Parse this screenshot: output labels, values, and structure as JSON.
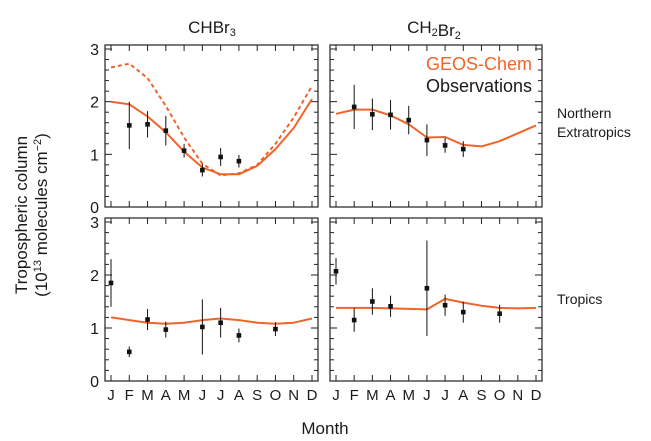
{
  "figure": {
    "ylabel": "Tropospheric column",
    "ylabel_unit": "(10^13 molecules cm^-2)",
    "xlabel": "Month",
    "month_ticks": [
      "J",
      "F",
      "M",
      "A",
      "M",
      "J",
      "J",
      "A",
      "S",
      "O",
      "N",
      "D"
    ]
  },
  "legend": {
    "entries": [
      {
        "label": "GEOS-Chem",
        "color": "#f0642a"
      },
      {
        "label": "Observations",
        "color": "#111111"
      }
    ]
  },
  "colors": {
    "model": "#f0642a",
    "observations": "#111111",
    "axis": "#222222"
  },
  "chart_data": [
    {
      "type": "line",
      "panel": "top-left",
      "species": "CHBr3",
      "region": "Northern Extratropics",
      "x": [
        1,
        2,
        3,
        4,
        5,
        6,
        7,
        8,
        9,
        10,
        11,
        12
      ],
      "ylim": [
        0,
        3
      ],
      "yticks": [
        0,
        1,
        2,
        3
      ],
      "series": [
        {
          "role": "model",
          "style": "solid",
          "values": [
            2.0,
            1.95,
            1.72,
            1.42,
            1.05,
            0.75,
            0.62,
            0.62,
            0.78,
            1.1,
            1.5,
            2.05
          ]
        },
        {
          "role": "model",
          "style": "dashed",
          "values": [
            2.65,
            2.72,
            2.45,
            1.92,
            1.32,
            0.82,
            0.6,
            0.64,
            0.8,
            1.2,
            1.7,
            2.3
          ]
        },
        {
          "role": "observations",
          "style": "points",
          "points": [
            {
              "x": 2,
              "y": 1.55,
              "err": 0.45
            },
            {
              "x": 3,
              "y": 1.57,
              "err": 0.25
            },
            {
              "x": 4,
              "y": 1.45,
              "err": 0.28
            },
            {
              "x": 5,
              "y": 1.07,
              "err": 0.13
            },
            {
              "x": 6,
              "y": 0.7,
              "err": 0.12
            },
            {
              "x": 7,
              "y": 0.95,
              "err": 0.17
            },
            {
              "x": 8,
              "y": 0.87,
              "err": 0.12
            }
          ]
        }
      ]
    },
    {
      "type": "line",
      "panel": "top-right",
      "species": "CH2Br2",
      "region": "Northern Extratropics",
      "x": [
        1,
        2,
        3,
        4,
        5,
        6,
        7,
        8,
        9,
        10,
        11,
        12
      ],
      "ylim": [
        0,
        3
      ],
      "yticks": [
        0,
        1,
        2,
        3
      ],
      "series": [
        {
          "role": "model",
          "style": "solid",
          "values": [
            1.77,
            1.85,
            1.85,
            1.74,
            1.57,
            1.32,
            1.33,
            1.18,
            1.15,
            1.25,
            1.4,
            1.55
          ]
        },
        {
          "role": "observations",
          "style": "points",
          "points": [
            {
              "x": 2,
              "y": 1.9,
              "err": 0.42
            },
            {
              "x": 3,
              "y": 1.76,
              "err": 0.3
            },
            {
              "x": 4,
              "y": 1.75,
              "err": 0.28
            },
            {
              "x": 5,
              "y": 1.65,
              "err": 0.27
            },
            {
              "x": 6,
              "y": 1.27,
              "err": 0.3
            },
            {
              "x": 7,
              "y": 1.17,
              "err": 0.14
            },
            {
              "x": 8,
              "y": 1.1,
              "err": 0.15
            }
          ]
        }
      ]
    },
    {
      "type": "line",
      "panel": "bottom-left",
      "species": "CHBr3",
      "region": "Tropics",
      "x": [
        1,
        2,
        3,
        4,
        5,
        6,
        7,
        8,
        9,
        10,
        11,
        12
      ],
      "ylim": [
        0,
        3
      ],
      "yticks": [
        0,
        1,
        2,
        3
      ],
      "series": [
        {
          "role": "model",
          "style": "solid",
          "values": [
            1.2,
            1.15,
            1.1,
            1.08,
            1.1,
            1.15,
            1.18,
            1.15,
            1.1,
            1.08,
            1.1,
            1.18
          ]
        },
        {
          "role": "observations",
          "style": "points",
          "points": [
            {
              "x": 1,
              "y": 1.85,
              "err": 0.45
            },
            {
              "x": 2,
              "y": 0.55,
              "err": 0.1
            },
            {
              "x": 3,
              "y": 1.16,
              "err": 0.2
            },
            {
              "x": 4,
              "y": 0.97,
              "err": 0.15
            },
            {
              "x": 6,
              "y": 1.02,
              "err": 0.52
            },
            {
              "x": 7,
              "y": 1.1,
              "err": 0.28
            },
            {
              "x": 8,
              "y": 0.86,
              "err": 0.13
            },
            {
              "x": 10,
              "y": 0.98,
              "err": 0.13
            }
          ]
        }
      ]
    },
    {
      "type": "line",
      "panel": "bottom-right",
      "species": "CH2Br2",
      "region": "Tropics",
      "x": [
        1,
        2,
        3,
        4,
        5,
        6,
        7,
        8,
        9,
        10,
        11,
        12
      ],
      "ylim": [
        0,
        3
      ],
      "yticks": [
        0,
        1,
        2,
        3
      ],
      "series": [
        {
          "role": "model",
          "style": "solid",
          "values": [
            1.38,
            1.38,
            1.38,
            1.37,
            1.36,
            1.35,
            1.55,
            1.48,
            1.42,
            1.38,
            1.37,
            1.38
          ]
        },
        {
          "role": "observations",
          "style": "points",
          "points": [
            {
              "x": 1,
              "y": 2.07,
              "err": 0.25
            },
            {
              "x": 2,
              "y": 1.15,
              "err": 0.22
            },
            {
              "x": 3,
              "y": 1.5,
              "err": 0.25
            },
            {
              "x": 4,
              "y": 1.41,
              "err": 0.2
            },
            {
              "x": 6,
              "y": 1.75,
              "err": 0.9
            },
            {
              "x": 7,
              "y": 1.43,
              "err": 0.2
            },
            {
              "x": 8,
              "y": 1.3,
              "err": 0.2
            },
            {
              "x": 10,
              "y": 1.27,
              "err": 0.17
            }
          ]
        }
      ]
    }
  ]
}
